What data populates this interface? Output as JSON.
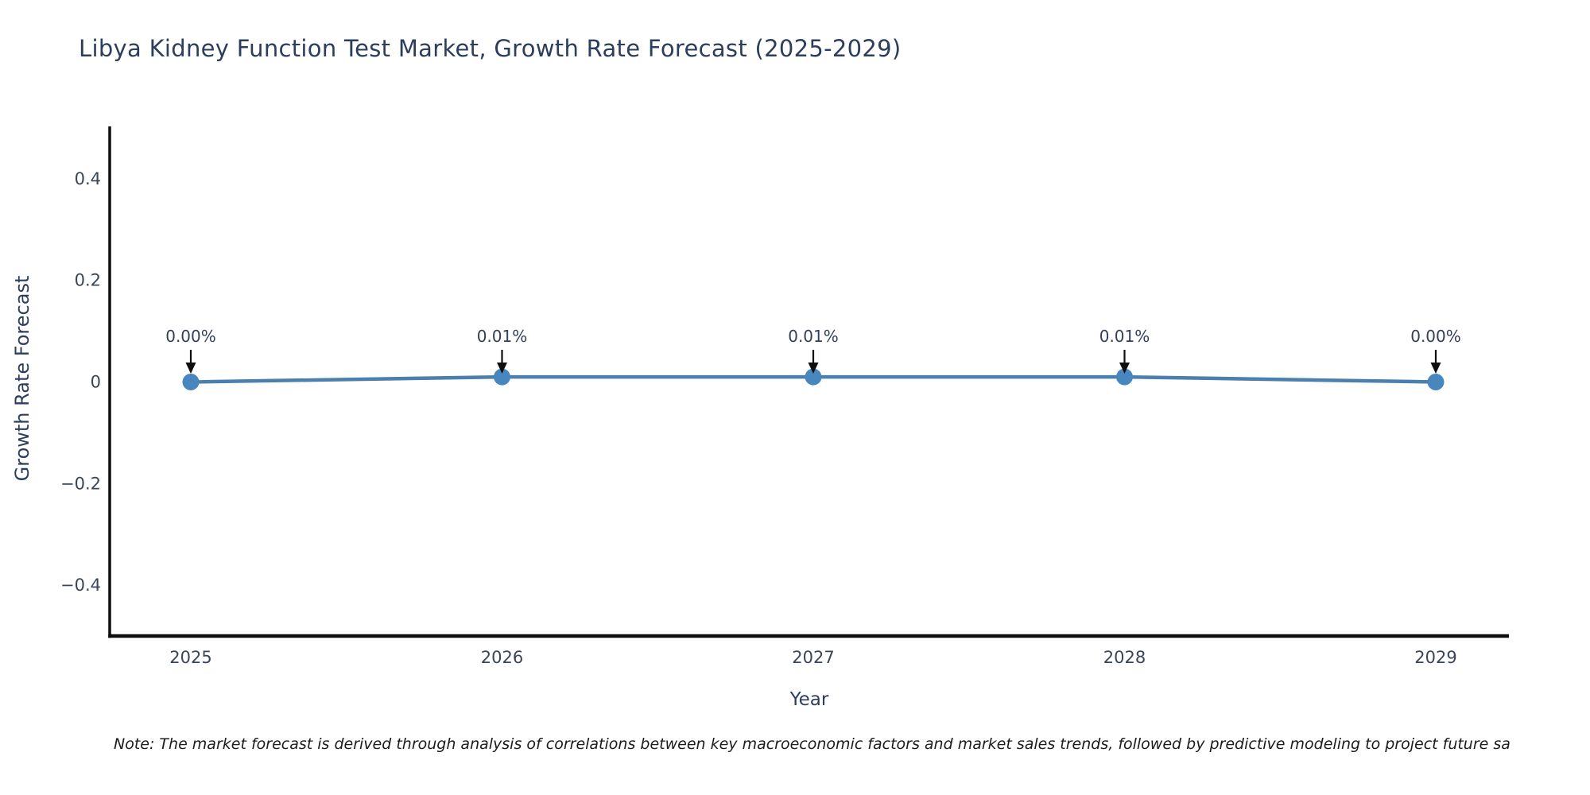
{
  "chart": {
    "title": "Libya Kidney Function Test Market, Growth Rate Forecast (2025-2029)",
    "x_axis_title": "Year",
    "y_axis_title": "Growth Rate Forecast",
    "note": "Note: The market forecast is derived through analysis of correlations between key macroeconomic factors and market sales trends, followed by predictive modeling to project future sa"
  },
  "chart_data": {
    "type": "line",
    "title": "Libya Kidney Function Test Market, Growth Rate Forecast (2025-2029)",
    "xlabel": "Year",
    "ylabel": "Growth Rate Forecast",
    "categories": [
      "2025",
      "2026",
      "2027",
      "2028",
      "2029"
    ],
    "series": [
      {
        "name": "Growth Rate Forecast",
        "values_percent": [
          0.0,
          0.01,
          0.01,
          0.01,
          0.0
        ],
        "point_labels": [
          "0.00%",
          "0.01%",
          "0.01%",
          "0.01%",
          "0.00%"
        ]
      }
    ],
    "ylim": [
      -0.5,
      0.5
    ],
    "y_ticks": [
      0.4,
      0.2,
      0,
      -0.2,
      -0.4
    ],
    "y_tick_labels": [
      "0.4",
      "0.2",
      "0",
      "−0.2",
      "−0.4"
    ],
    "grid": false,
    "legend_position": "none",
    "annotations_have_arrows": true
  },
  "colors": {
    "background": "#ffffff",
    "title_text": "#2c3e5d",
    "axis_title_text": "#2c3e5d",
    "tick_text": "#3b4559",
    "annotation_text": "#33405a",
    "axis_line": "#0d0d0d",
    "trend_line": "#4a7fae",
    "marker_fill": "#4787be",
    "arrow": "#0f0f0f",
    "note_text": "#1c1c1c"
  }
}
